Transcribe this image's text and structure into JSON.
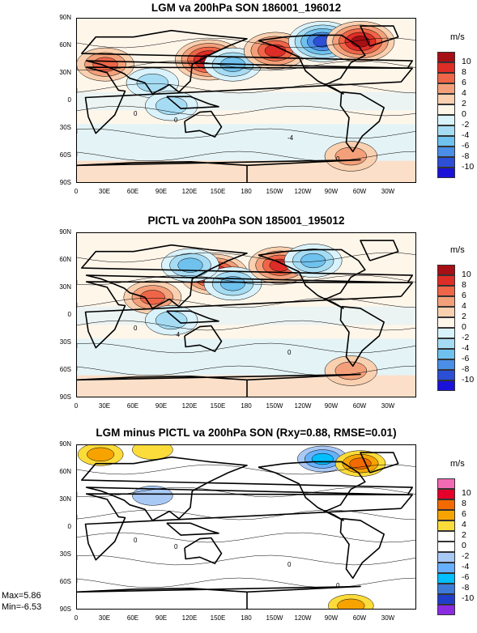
{
  "panels": [
    {
      "title": "LGM va 200hPa SON 186001_196012",
      "units": "m/s",
      "palette": "diverging"
    },
    {
      "title": "PICTL va 200hPa SON 185001_195012",
      "units": "m/s",
      "palette": "diverging"
    },
    {
      "title": "LGM minus PICTL va 200hPa SON (Rxy=0.88, RMSE=0.01)",
      "units": "m/s",
      "palette": "difference"
    }
  ],
  "axes": {
    "ylabels": [
      "90N",
      "60N",
      "30N",
      "0",
      "30S",
      "60S",
      "90S"
    ],
    "xlabels": [
      "0",
      "30E",
      "60E",
      "90E",
      "120E",
      "150E",
      "180",
      "150W",
      "120W",
      "90W",
      "60W",
      "30W"
    ]
  },
  "colorbar_labels": [
    "10",
    "8",
    "6",
    "4",
    "2",
    "0",
    "-2",
    "-4",
    "-6",
    "-8",
    "-10"
  ],
  "palettes": {
    "diverging": [
      "#a50f15",
      "#de2d26",
      "#ef6548",
      "#f3a07a",
      "#f9d0b0",
      "#fff6ea",
      "#d9f2fb",
      "#a6dcf3",
      "#6fc1ee",
      "#4a8ee8",
      "#2c4fd6",
      "#1a12d8"
    ],
    "difference": [
      "#f06bb4",
      "#e4002b",
      "#f26a00",
      "#f6a300",
      "#fcdc3a",
      "#ffffff",
      "#ffffff",
      "#a9c9f5",
      "#66b1ff",
      "#00bfff",
      "#3c7bd8",
      "#1f3fc9",
      "#8a2be2"
    ]
  },
  "stats": {
    "max": "Max=5.86",
    "min": "Min=-6.53"
  },
  "chart_data": [
    {
      "type": "heatmap",
      "title": "LGM va 200hPa SON 186001_196012",
      "units": "m/s",
      "xlim": [
        0,
        360
      ],
      "ylim": [
        -90,
        90
      ],
      "levels": [
        -10,
        -8,
        -6,
        -4,
        -2,
        0,
        2,
        4,
        6,
        8,
        10
      ],
      "features": [
        {
          "lon": 140,
          "lat": 45,
          "value": 10
        },
        {
          "lon": 165,
          "lat": 40,
          "value": -6
        },
        {
          "lon": 210,
          "lat": 55,
          "value": 8
        },
        {
          "lon": 260,
          "lat": 65,
          "value": -10
        },
        {
          "lon": 300,
          "lat": 65,
          "value": 10
        },
        {
          "lon": 80,
          "lat": 20,
          "value": -4
        },
        {
          "lon": 100,
          "lat": -5,
          "value": -4
        },
        {
          "lon": 30,
          "lat": 40,
          "value": 6
        },
        {
          "lon": 290,
          "lat": -60,
          "value": 4
        }
      ],
      "contour_labels": [
        "0",
        "-4",
        "0",
        "0"
      ]
    },
    {
      "type": "heatmap",
      "title": "PICTL va 200hPa SON 185001_195012",
      "units": "m/s",
      "xlim": [
        0,
        360
      ],
      "ylim": [
        -90,
        90
      ],
      "levels": [
        -10,
        -8,
        -6,
        -4,
        -2,
        0,
        2,
        4,
        6,
        8,
        10
      ],
      "features": [
        {
          "lon": 145,
          "lat": 45,
          "value": 10
        },
        {
          "lon": 165,
          "lat": 35,
          "value": -6
        },
        {
          "lon": 215,
          "lat": 55,
          "value": 8
        },
        {
          "lon": 250,
          "lat": 60,
          "value": -6
        },
        {
          "lon": 120,
          "lat": 55,
          "value": -6
        },
        {
          "lon": 80,
          "lat": 20,
          "value": 6
        },
        {
          "lon": 100,
          "lat": -5,
          "value": -4
        },
        {
          "lon": 290,
          "lat": -60,
          "value": 4
        }
      ],
      "contour_labels": [
        "-4",
        "0",
        "0"
      ]
    },
    {
      "type": "heatmap",
      "title": "LGM minus PICTL va 200hPa SON (Rxy=0.88, RMSE=0.01)",
      "units": "m/s",
      "xlim": [
        0,
        360
      ],
      "ylim": [
        -90,
        90
      ],
      "levels": [
        -10,
        -8,
        -6,
        -4,
        -2,
        0,
        2,
        4,
        6,
        8,
        10
      ],
      "max": 5.86,
      "min": -6.53,
      "features": [
        {
          "lon": 260,
          "lat": 75,
          "value": -6
        },
        {
          "lon": 300,
          "lat": 70,
          "value": 6
        },
        {
          "lon": 25,
          "lat": 80,
          "value": 4
        },
        {
          "lon": 80,
          "lat": 85,
          "value": 2
        },
        {
          "lon": 290,
          "lat": -85,
          "value": 4
        },
        {
          "lon": 80,
          "lat": 35,
          "value": -2
        }
      ],
      "contour_labels": [
        "0",
        "0",
        "0",
        "0"
      ]
    }
  ]
}
